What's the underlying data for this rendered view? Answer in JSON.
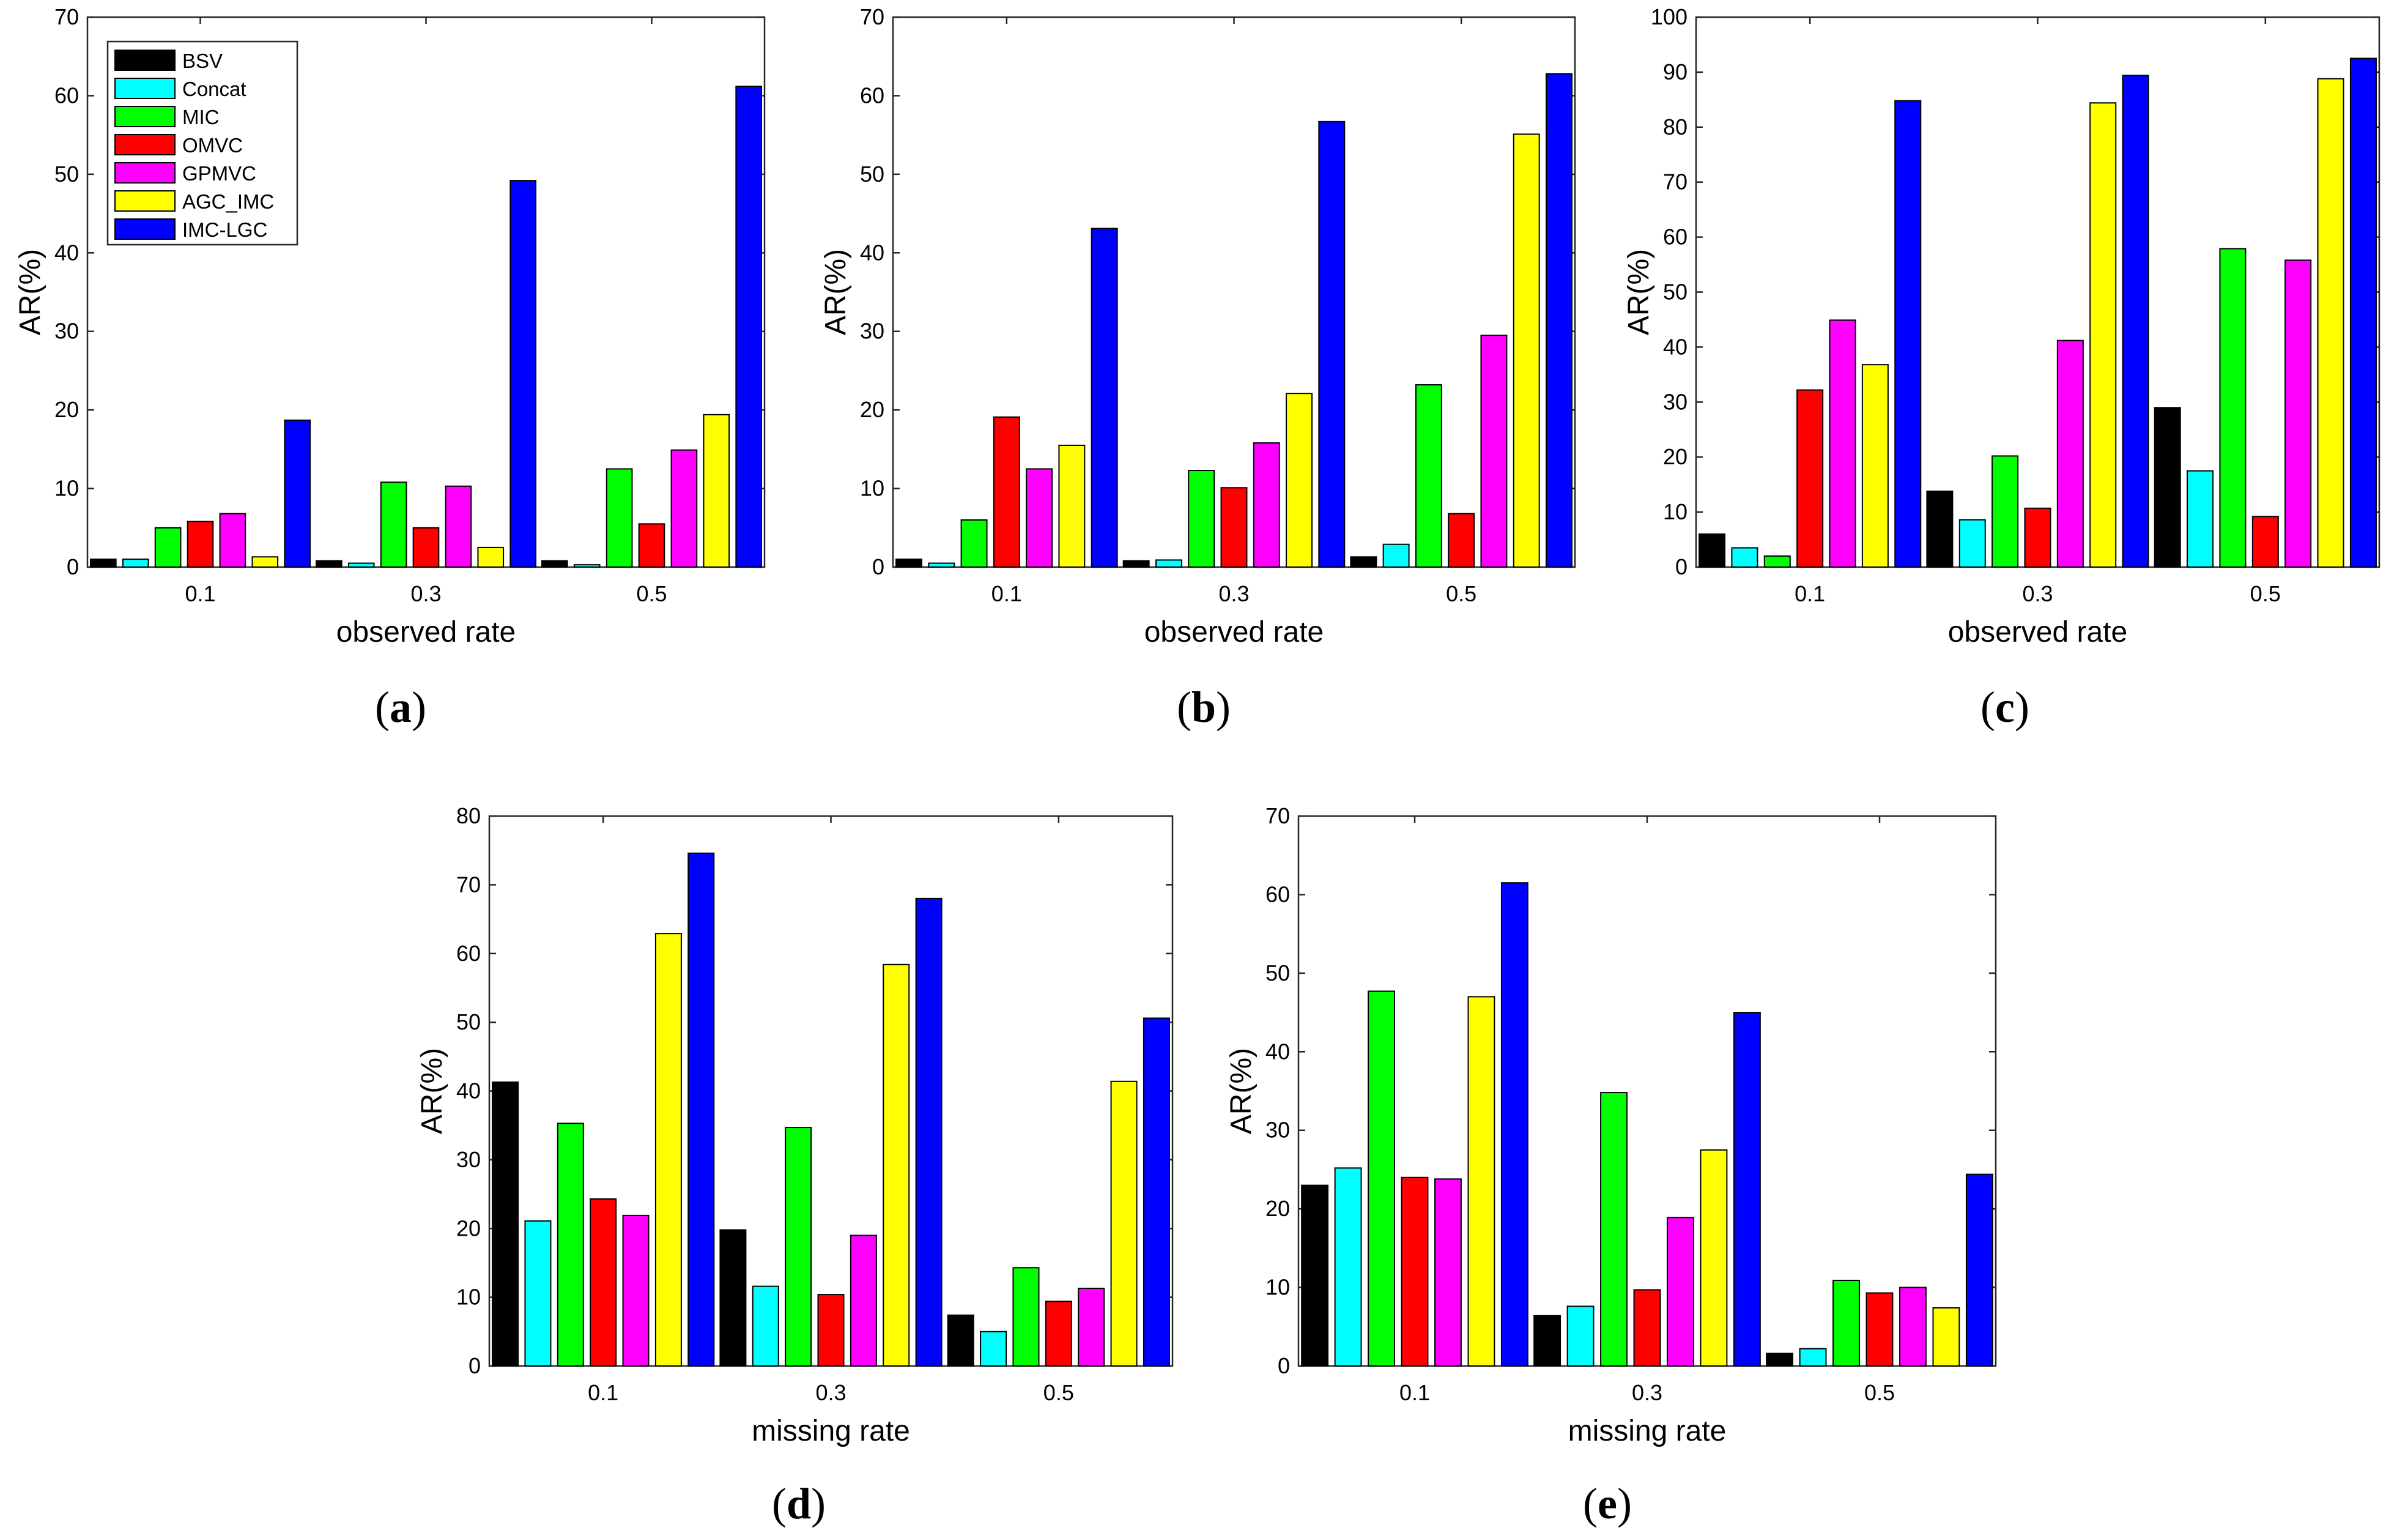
{
  "figure": {
    "series_names": [
      "BSV",
      "Concat",
      "MIC",
      "OMVC",
      "GPMVC",
      "AGC_IMC",
      "IMC-LGC"
    ],
    "series_colors": [
      "#000000",
      "#00ffff",
      "#00ff00",
      "#ff0000",
      "#ff00ff",
      "#ffff00",
      "#0000ff"
    ],
    "edge_color": "#000000"
  },
  "chart_data": [
    {
      "type": "bar",
      "panel_label": "a",
      "categories": [
        "0.1",
        "0.3",
        "0.5"
      ],
      "xlabel": "observed rate",
      "ylabel": "AR(%)",
      "ylim": [
        0,
        70
      ],
      "yticks": [
        0,
        10,
        20,
        30,
        40,
        50,
        60,
        70
      ],
      "legend": "top-left",
      "series": [
        {
          "name": "BSV",
          "values": [
            1.0,
            0.8,
            0.8
          ]
        },
        {
          "name": "Concat",
          "values": [
            1.0,
            0.5,
            0.3
          ]
        },
        {
          "name": "MIC",
          "values": [
            5.0,
            10.8,
            12.5
          ]
        },
        {
          "name": "OMVC",
          "values": [
            5.8,
            5.0,
            5.5
          ]
        },
        {
          "name": "GPMVC",
          "values": [
            6.8,
            10.3,
            14.9
          ]
        },
        {
          "name": "AGC_IMC",
          "values": [
            1.3,
            2.5,
            19.4
          ]
        },
        {
          "name": "IMC-LGC",
          "values": [
            18.7,
            49.2,
            61.2
          ]
        }
      ]
    },
    {
      "type": "bar",
      "panel_label": "b",
      "categories": [
        "0.1",
        "0.3",
        "0.5"
      ],
      "xlabel": "observed rate",
      "ylabel": "AR(%)",
      "ylim": [
        0,
        70
      ],
      "yticks": [
        0,
        10,
        20,
        30,
        40,
        50,
        60,
        70
      ],
      "series": [
        {
          "name": "BSV",
          "values": [
            1.0,
            0.8,
            1.3
          ]
        },
        {
          "name": "Concat",
          "values": [
            0.5,
            0.9,
            2.9
          ]
        },
        {
          "name": "MIC",
          "values": [
            6.0,
            12.3,
            23.2
          ]
        },
        {
          "name": "OMVC",
          "values": [
            19.1,
            10.1,
            6.8
          ]
        },
        {
          "name": "GPMVC",
          "values": [
            12.5,
            15.8,
            29.5
          ]
        },
        {
          "name": "AGC_IMC",
          "values": [
            15.5,
            22.1,
            55.1
          ]
        },
        {
          "name": "IMC-LGC",
          "values": [
            43.1,
            56.7,
            62.8
          ]
        }
      ]
    },
    {
      "type": "bar",
      "panel_label": "c",
      "categories": [
        "0.1",
        "0.3",
        "0.5"
      ],
      "xlabel": "observed rate",
      "ylabel": "AR(%)",
      "ylim": [
        0,
        100
      ],
      "yticks": [
        0,
        10,
        20,
        30,
        40,
        50,
        60,
        70,
        80,
        90,
        100
      ],
      "series": [
        {
          "name": "BSV",
          "values": [
            6.0,
            13.8,
            29.0
          ]
        },
        {
          "name": "Concat",
          "values": [
            3.5,
            8.6,
            17.5
          ]
        },
        {
          "name": "MIC",
          "values": [
            2.0,
            20.2,
            57.9
          ]
        },
        {
          "name": "OMVC",
          "values": [
            32.2,
            10.7,
            9.2
          ]
        },
        {
          "name": "GPMVC",
          "values": [
            44.9,
            41.2,
            55.8
          ]
        },
        {
          "name": "AGC_IMC",
          "values": [
            36.8,
            84.4,
            88.8
          ]
        },
        {
          "name": "IMC-LGC",
          "values": [
            84.8,
            89.4,
            92.5
          ]
        }
      ]
    },
    {
      "type": "bar",
      "panel_label": "d",
      "categories": [
        "0.1",
        "0.3",
        "0.5"
      ],
      "xlabel": "missing rate",
      "ylabel": "AR(%)",
      "ylim": [
        0,
        80
      ],
      "yticks": [
        0,
        10,
        20,
        30,
        40,
        50,
        60,
        70,
        80
      ],
      "series": [
        {
          "name": "BSV",
          "values": [
            41.3,
            19.8,
            7.4
          ]
        },
        {
          "name": "Concat",
          "values": [
            21.1,
            11.6,
            5.0
          ]
        },
        {
          "name": "MIC",
          "values": [
            35.3,
            34.7,
            14.3
          ]
        },
        {
          "name": "OMVC",
          "values": [
            24.3,
            10.4,
            9.4
          ]
        },
        {
          "name": "GPMVC",
          "values": [
            21.9,
            19.0,
            11.3
          ]
        },
        {
          "name": "AGC_IMC",
          "values": [
            62.9,
            58.4,
            41.4
          ]
        },
        {
          "name": "IMC-LGC",
          "values": [
            74.6,
            68.0,
            50.6
          ]
        }
      ]
    },
    {
      "type": "bar",
      "panel_label": "e",
      "categories": [
        "0.1",
        "0.3",
        "0.5"
      ],
      "xlabel": "missing rate",
      "ylabel": "AR(%)",
      "ylim": [
        0,
        70
      ],
      "yticks": [
        0,
        10,
        20,
        30,
        40,
        50,
        60,
        70
      ],
      "series": [
        {
          "name": "BSV",
          "values": [
            23.0,
            6.4,
            1.6
          ]
        },
        {
          "name": "Concat",
          "values": [
            25.2,
            7.6,
            2.2
          ]
        },
        {
          "name": "MIC",
          "values": [
            47.7,
            34.8,
            10.9
          ]
        },
        {
          "name": "OMVC",
          "values": [
            24.0,
            9.7,
            9.3
          ]
        },
        {
          "name": "GPMVC",
          "values": [
            23.8,
            18.9,
            10.0
          ]
        },
        {
          "name": "AGC_IMC",
          "values": [
            47.0,
            27.5,
            7.4
          ]
        },
        {
          "name": "IMC-LGC",
          "values": [
            61.5,
            45.0,
            24.4
          ]
        }
      ]
    }
  ]
}
